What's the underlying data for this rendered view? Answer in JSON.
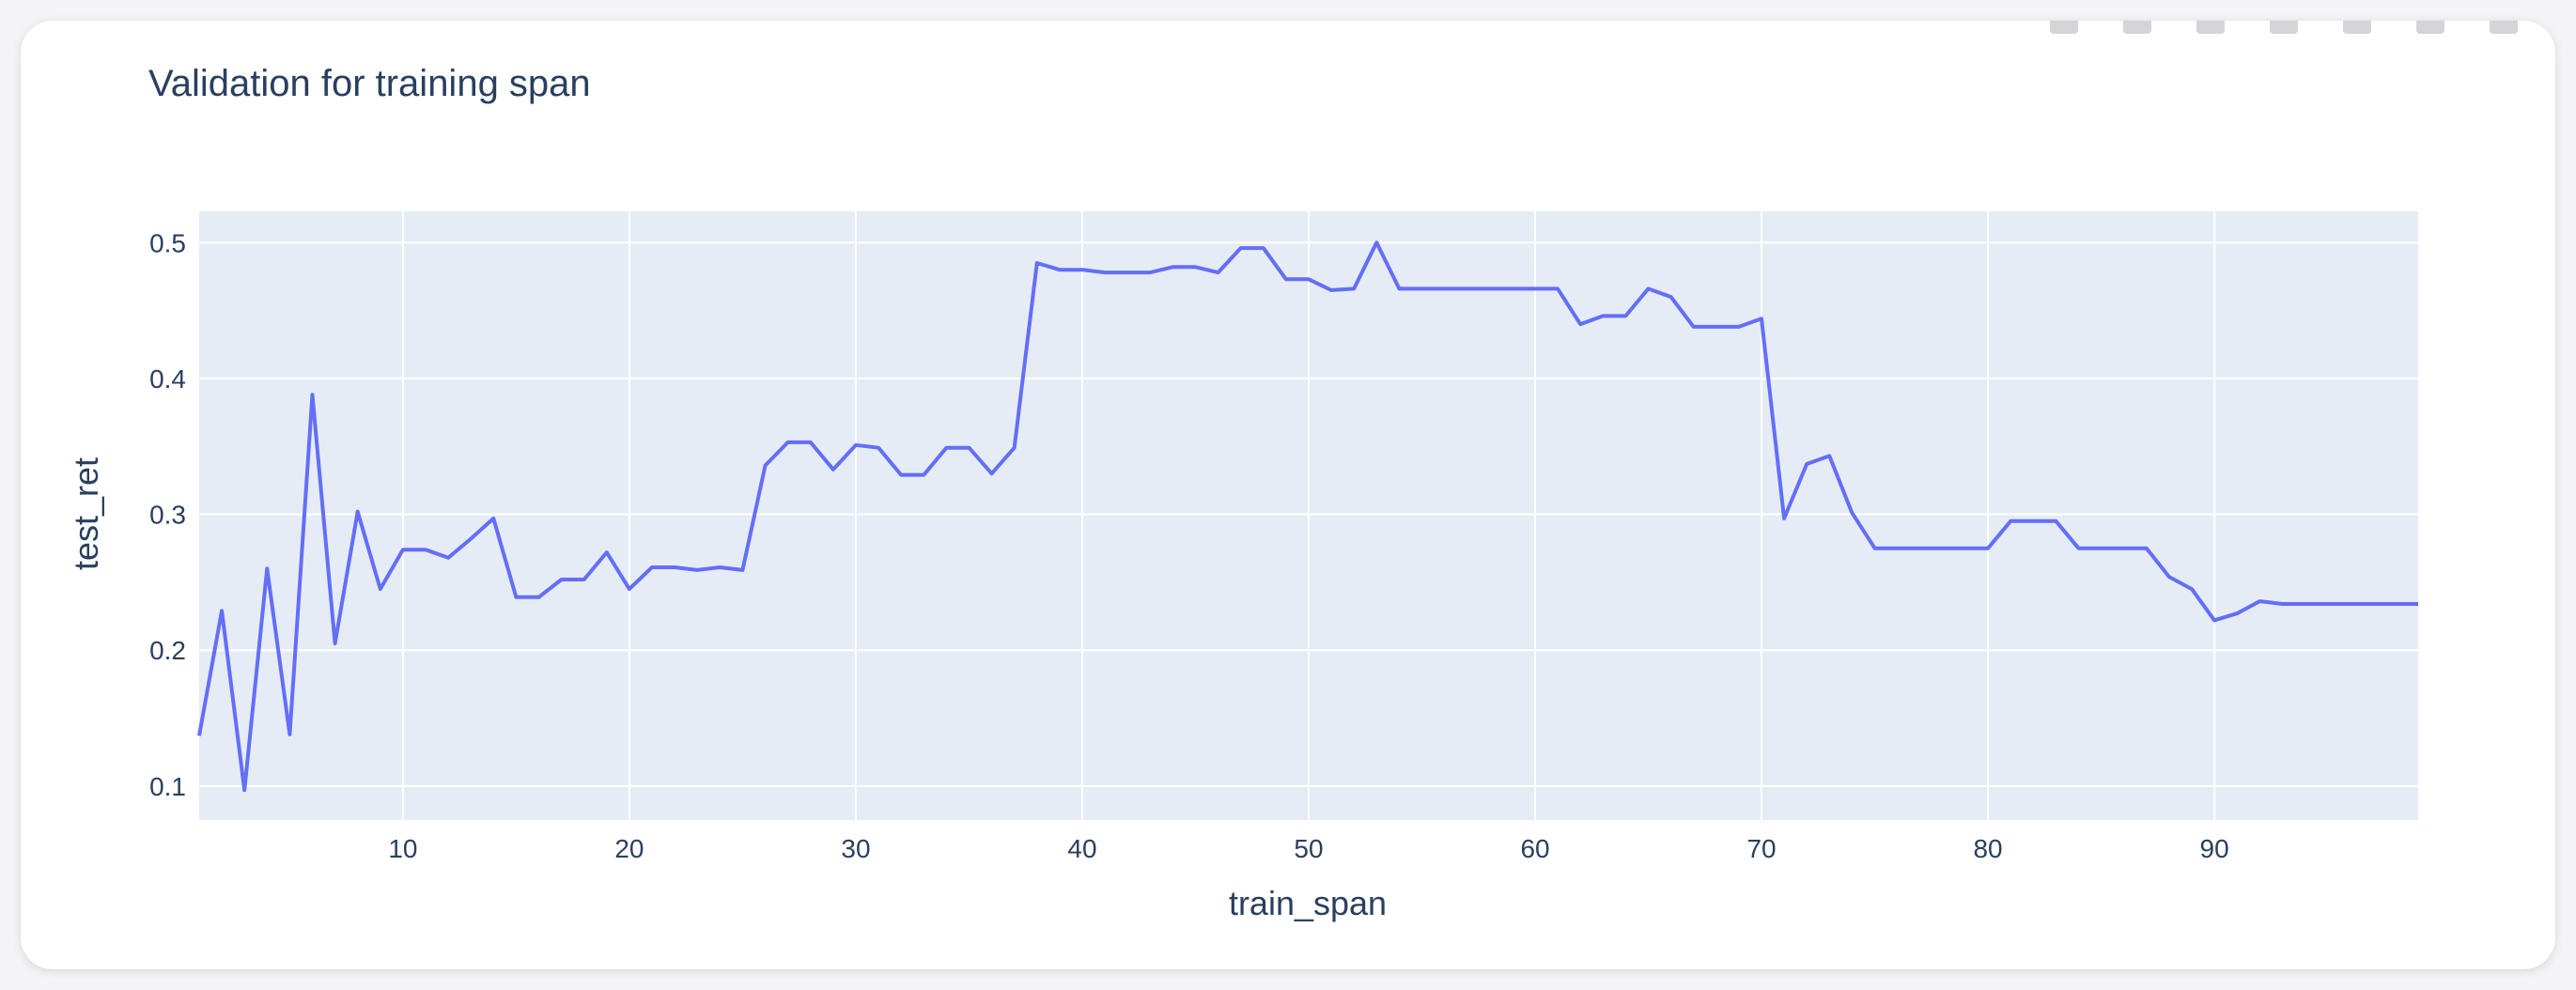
{
  "chart_data": {
    "type": "line",
    "title": "Validation for training span",
    "xlabel": "train_span",
    "ylabel": "test_ret",
    "xlim": [
      1,
      99
    ],
    "ylim": [
      0.075,
      0.523
    ],
    "x_ticks": [
      10,
      20,
      30,
      40,
      50,
      60,
      70,
      80,
      90
    ],
    "y_ticks": [
      0.1,
      0.2,
      0.3,
      0.4,
      0.5
    ],
    "grid": true,
    "series": [
      {
        "x": [
          1,
          2,
          3,
          4,
          5,
          6,
          7,
          8,
          9,
          10,
          11,
          12,
          13,
          14,
          15,
          16,
          17,
          18,
          19,
          20,
          21,
          22,
          23,
          24,
          25,
          26,
          27,
          28,
          29,
          30,
          31,
          32,
          33,
          34,
          35,
          36,
          37,
          38,
          39,
          40,
          41,
          42,
          43,
          44,
          45,
          46,
          47,
          48,
          49,
          50,
          51,
          52,
          53,
          54,
          55,
          56,
          57,
          58,
          59,
          60,
          61,
          62,
          63,
          64,
          65,
          66,
          67,
          68,
          69,
          70,
          71,
          72,
          73,
          74,
          75,
          76,
          77,
          78,
          79,
          80,
          81,
          82,
          83,
          84,
          85,
          86,
          87,
          88,
          89,
          90,
          91,
          92,
          93,
          94,
          95,
          96,
          97,
          98,
          99
        ],
        "values": [
          0.137,
          0.229,
          0.097,
          0.26,
          0.138,
          0.388,
          0.205,
          0.302,
          0.245,
          0.274,
          0.274,
          0.268,
          0.282,
          0.297,
          0.239,
          0.239,
          0.252,
          0.252,
          0.272,
          0.245,
          0.261,
          0.261,
          0.259,
          0.261,
          0.259,
          0.336,
          0.353,
          0.353,
          0.333,
          0.351,
          0.349,
          0.329,
          0.329,
          0.349,
          0.349,
          0.33,
          0.349,
          0.485,
          0.48,
          0.48,
          0.478,
          0.478,
          0.478,
          0.482,
          0.482,
          0.478,
          0.496,
          0.496,
          0.473,
          0.473,
          0.465,
          0.466,
          0.5,
          0.466,
          0.466,
          0.466,
          0.466,
          0.466,
          0.466,
          0.466,
          0.466,
          0.44,
          0.446,
          0.446,
          0.466,
          0.46,
          0.438,
          0.438,
          0.438,
          0.444,
          0.297,
          0.337,
          0.343,
          0.301,
          0.275,
          0.275,
          0.275,
          0.275,
          0.275,
          0.275,
          0.295,
          0.295,
          0.295,
          0.275,
          0.275,
          0.275,
          0.275,
          0.254,
          0.245,
          0.222,
          0.227,
          0.236,
          0.234,
          0.234,
          0.234,
          0.234,
          0.234,
          0.234,
          0.234
        ]
      }
    ],
    "colors": {
      "line": "#636efa",
      "plot_bg": "#e5ecf6",
      "grid": "#ffffff",
      "text": "#2a3f5f"
    }
  }
}
